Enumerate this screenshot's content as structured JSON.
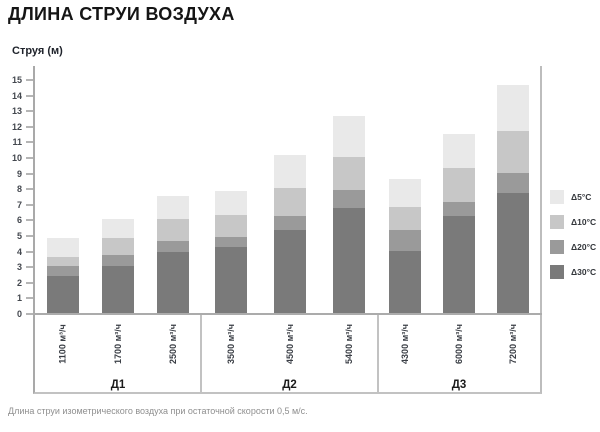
{
  "title": "ДЛИНА СТРУИ ВОЗДУХА",
  "y_axis": {
    "label": "Струя (м)",
    "min": 0,
    "max": 15,
    "step": 1,
    "ticks": [
      0,
      1,
      2,
      3,
      4,
      5,
      6,
      7,
      8,
      9,
      10,
      11,
      12,
      13,
      14,
      15
    ]
  },
  "caption": "Длина струи изометрического воздуха при остаточной скорости 0,5 м/с.",
  "legend": [
    {
      "key": "d5",
      "label": "Δ5°C",
      "color": "#e9e9e9"
    },
    {
      "key": "d10",
      "label": "Δ10°C",
      "color": "#c7c7c7"
    },
    {
      "key": "d20",
      "label": "Δ20°C",
      "color": "#9a9a9a"
    },
    {
      "key": "d30",
      "label": "Δ30°C",
      "color": "#7a7a7a"
    }
  ],
  "chart_data": {
    "type": "bar",
    "stacked": true,
    "title": "ДЛИНА СТРУИ ВОЗДУХА",
    "ylabel": "Струя (м)",
    "unit": "м",
    "ylim": [
      0,
      15
    ],
    "grid": false,
    "legend_position": "right",
    "note": "values are cumulative jet length (stack top) for each ΔT shade",
    "groups": [
      {
        "name": "Д1",
        "bars": [
          {
            "flow": "1100 м³/ч",
            "jet_length": {
              "d30": 2.4,
              "d20": 3.0,
              "d10": 3.6,
              "d5": 4.8
            }
          },
          {
            "flow": "1700 м³/ч",
            "jet_length": {
              "d30": 3.0,
              "d20": 3.7,
              "d10": 4.8,
              "d5": 6.0
            }
          },
          {
            "flow": "2500 м³/ч",
            "jet_length": {
              "d30": 3.9,
              "d20": 4.6,
              "d10": 6.0,
              "d5": 7.5
            }
          }
        ]
      },
      {
        "name": "Д2",
        "bars": [
          {
            "flow": "3500 м³/ч",
            "jet_length": {
              "d30": 4.2,
              "d20": 4.9,
              "d10": 6.3,
              "d5": 7.8
            }
          },
          {
            "flow": "4500 м³/ч",
            "jet_length": {
              "d30": 5.3,
              "d20": 6.2,
              "d10": 8.0,
              "d5": 10.1
            }
          },
          {
            "flow": "5400 м³/ч",
            "jet_length": {
              "d30": 6.7,
              "d20": 7.9,
              "d10": 10.0,
              "d5": 12.6
            }
          }
        ]
      },
      {
        "name": "Д3",
        "bars": [
          {
            "flow": "4300 м³/ч",
            "jet_length": {
              "d30": 4.0,
              "d20": 5.3,
              "d10": 6.8,
              "d5": 8.6
            }
          },
          {
            "flow": "6000 м³/ч",
            "jet_length": {
              "d30": 6.2,
              "d20": 7.1,
              "d10": 9.3,
              "d5": 11.5
            }
          },
          {
            "flow": "7200 м³/ч",
            "jet_length": {
              "d30": 7.7,
              "d20": 9.0,
              "d10": 11.7,
              "d5": 14.6
            }
          }
        ]
      }
    ]
  }
}
